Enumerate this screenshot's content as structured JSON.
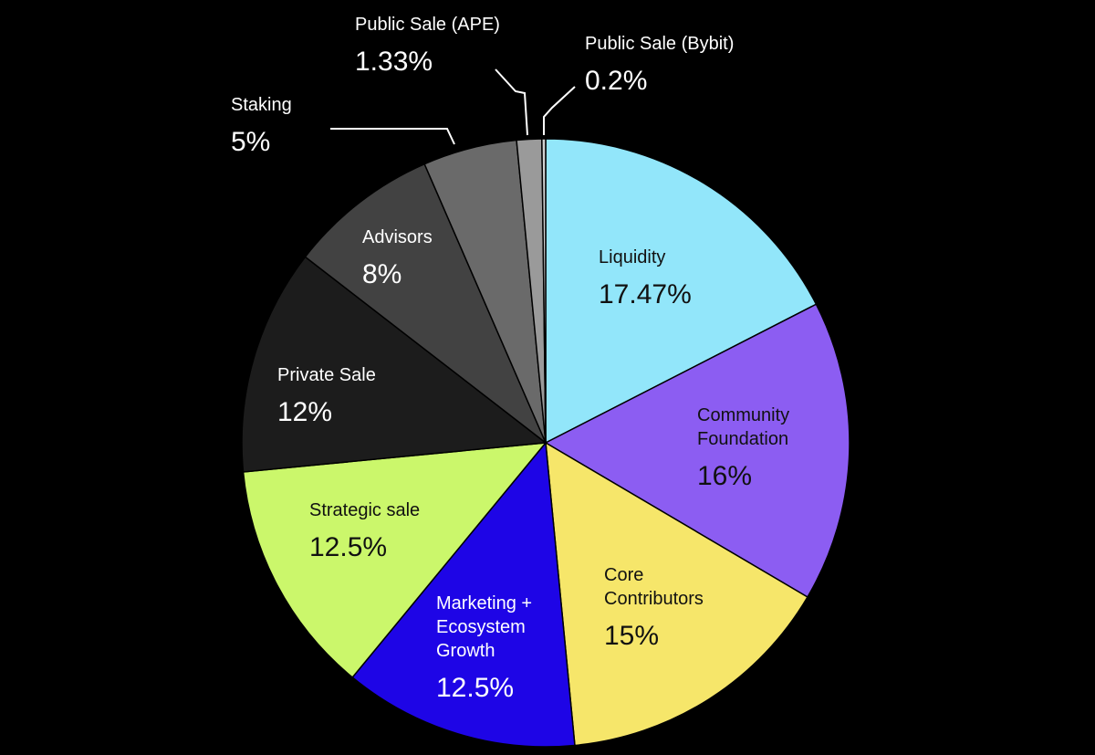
{
  "chart_data": {
    "type": "pie",
    "start_angle_deg": 0,
    "direction": "clockwise",
    "slices": [
      {
        "label": "Liquidity",
        "value": 17.47,
        "value_label": "17.47%",
        "color": "#92E6FA",
        "text_color": "#111111"
      },
      {
        "label": "Community Foundation",
        "value": 16,
        "value_label": "16%",
        "color": "#8C5DF2",
        "text_color": "#111111"
      },
      {
        "label": "Core Contributors",
        "value": 15,
        "value_label": "15%",
        "color": "#F6E66A",
        "text_color": "#111111"
      },
      {
        "label": "Marketing + Ecosystem Growth",
        "value": 12.5,
        "value_label": "12.5%",
        "color": "#1E05E6",
        "text_color": "#FFFFFF"
      },
      {
        "label": "Strategic sale",
        "value": 12.5,
        "value_label": "12.5%",
        "color": "#CBF76B",
        "text_color": "#111111"
      },
      {
        "label": "Private Sale",
        "value": 12,
        "value_label": "12%",
        "color": "#1C1C1C",
        "text_color": "#FFFFFF"
      },
      {
        "label": "Advisors",
        "value": 8,
        "value_label": "8%",
        "color": "#424242",
        "text_color": "#FFFFFF"
      },
      {
        "label": "Staking",
        "value": 5,
        "value_label": "5%",
        "color": "#6A6A6A",
        "text_color": "#FFFFFF"
      },
      {
        "label": "Public Sale (APE)",
        "value": 1.33,
        "value_label": "1.33%",
        "color": "#9A9A9A",
        "text_color": "#FFFFFF"
      },
      {
        "label": "Public Sale (Bybit)",
        "value": 0.2,
        "value_label": "0.2%",
        "color": "#D0D0D0",
        "text_color": "#FFFFFF"
      }
    ]
  }
}
